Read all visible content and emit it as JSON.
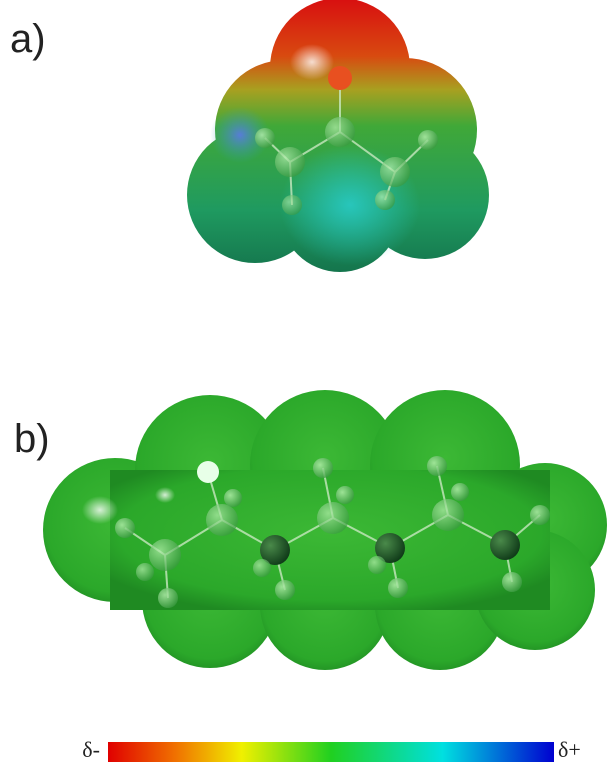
{
  "panels": [
    {
      "label": "a)"
    },
    {
      "label": "b)"
    }
  ],
  "colorbar": {
    "left_label": "δ-",
    "right_label": "δ+"
  }
}
